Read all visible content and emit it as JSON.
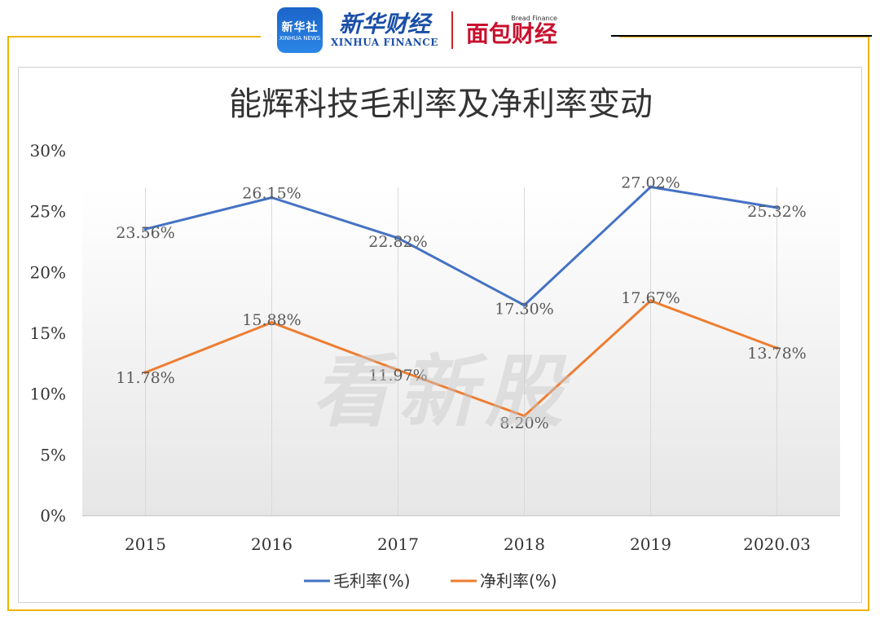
{
  "header": {
    "xinhua_badge_zh": "新华社",
    "xinhua_badge_en": "XINHUA NEWS",
    "xinhua_finance_zh": "新华财经",
    "xinhua_finance_en": "XINHUA FINANCE",
    "bread_finance_en": "Bread Finance",
    "bread_finance_zh": "面包财经"
  },
  "watermark": "看新股",
  "colors": {
    "gross": "#4472c4",
    "net": "#ed7d31",
    "frame": "#f0b400"
  },
  "chart_data": {
    "type": "line",
    "title": "能辉科技毛利率及净利率变动",
    "categories": [
      "2015",
      "2016",
      "2017",
      "2018",
      "2019",
      "2020.03"
    ],
    "yticks": [
      "0%",
      "5%",
      "10%",
      "15%",
      "20%",
      "25%",
      "30%"
    ],
    "ylim": [
      0,
      30
    ],
    "grid": "vertical",
    "legend": "bottom",
    "series": [
      {
        "name": "毛利率(%)",
        "values": [
          23.56,
          26.15,
          22.82,
          17.3,
          27.02,
          25.32
        ],
        "labels": [
          "23.56%",
          "26.15%",
          "22.82%",
          "17.30%",
          "27.02%",
          "25.32%"
        ]
      },
      {
        "name": "净利率(%)",
        "values": [
          11.78,
          15.88,
          11.97,
          8.2,
          17.67,
          13.78
        ],
        "labels": [
          "11.78%",
          "15.88%",
          "11.97%",
          "8.20%",
          "17.67%",
          "13.78%"
        ]
      }
    ]
  }
}
